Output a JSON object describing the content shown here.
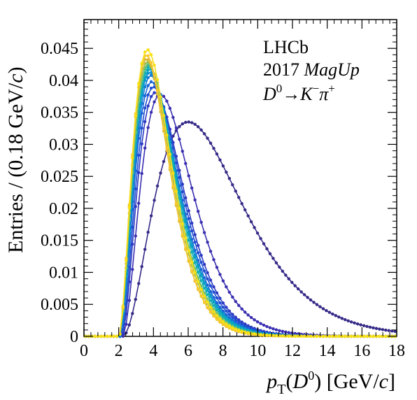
{
  "chart_data": {
    "type": "line",
    "xlabel": {
      "main": "p",
      "sub": "T",
      "open": "(",
      "particle": "D",
      "sup": "0",
      "close": ")",
      "unit": " [GeV/",
      "unit_it": "c",
      "unit_close": "]"
    },
    "ylabel": {
      "main": "Entries / (0.18 GeV/",
      "unit_it": "c",
      "close": ")"
    },
    "xlim": [
      0,
      18
    ],
    "ylim": [
      0,
      0.0495
    ],
    "x_ticks": [
      "0",
      "2",
      "4",
      "6",
      "8",
      "10",
      "12",
      "14",
      "16",
      "18"
    ],
    "y_ticks": [
      "0",
      "0.005",
      "0.01",
      "0.015",
      "0.02",
      "0.025",
      "0.03",
      "0.035",
      "0.04",
      "0.045"
    ],
    "grid": false,
    "annotations": {
      "experiment": "LHCb",
      "year": "2017",
      "polarity": "MagUp",
      "decay": {
        "mother": "D",
        "mother_sup": "0",
        "arrow": "→",
        "kaon": "K",
        "kaon_sup": "−",
        "pion": "π",
        "pion_sup": "+"
      }
    },
    "series": [
      {
        "color": "#352a87",
        "peak_x": 6.0,
        "peak_y": 0.0335,
        "threshold": 2.2
      },
      {
        "color": "#3a2fb0",
        "peak_x": 4.4,
        "peak_y": 0.0378,
        "threshold": 2.2
      },
      {
        "color": "#2c39c2",
        "peak_x": 4.1,
        "peak_y": 0.0381,
        "threshold": 2.15
      },
      {
        "color": "#1f4ed1",
        "peak_x": 4.0,
        "peak_y": 0.039,
        "threshold": 2.1
      },
      {
        "color": "#1a66d8",
        "peak_x": 3.9,
        "peak_y": 0.0398,
        "threshold": 2.05
      },
      {
        "color": "#127bd6",
        "peak_x": 3.85,
        "peak_y": 0.0408,
        "threshold": 2.05
      },
      {
        "color": "#0a8fd1",
        "peak_x": 3.8,
        "peak_y": 0.0413,
        "threshold": 2.0
      },
      {
        "color": "#08a0c6",
        "peak_x": 3.8,
        "peak_y": 0.0418,
        "threshold": 2.0
      },
      {
        "color": "#12b0b2",
        "peak_x": 3.75,
        "peak_y": 0.0421,
        "threshold": 2.0
      },
      {
        "color": "#3bbb95",
        "peak_x": 3.7,
        "peak_y": 0.0424,
        "threshold": 2.0
      },
      {
        "color": "#74c174",
        "peak_x": 3.7,
        "peak_y": 0.0427,
        "threshold": 2.0
      },
      {
        "color": "#aabe51",
        "peak_x": 3.65,
        "peak_y": 0.043,
        "threshold": 2.0
      },
      {
        "color": "#d9b935",
        "peak_x": 3.6,
        "peak_y": 0.0434,
        "threshold": 2.0
      },
      {
        "color": "#f8c82a",
        "peak_x": 3.6,
        "peak_y": 0.044,
        "threshold": 2.0
      },
      {
        "color": "#f9e014",
        "peak_x": 3.65,
        "peak_y": 0.0448,
        "threshold": 2.0
      }
    ]
  }
}
